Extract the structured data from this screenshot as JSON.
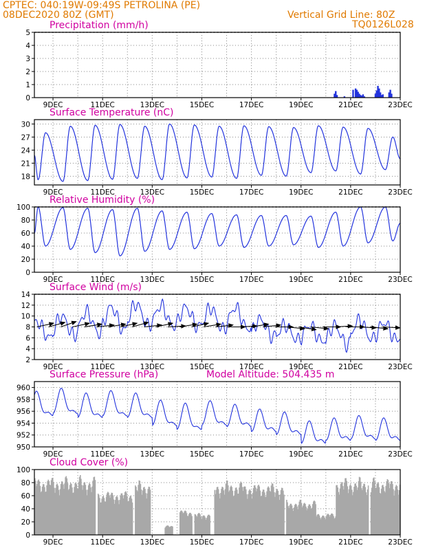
{
  "header": {
    "line1_left": "CPTEC:   040:19W-09:49S  PETROLINA (PE)",
    "line2_left": "08DEC2020 80Z (GMT)",
    "line1_right": "Vertical Grid Line: 80Z",
    "line2_right": "TQ0126L028"
  },
  "colors": {
    "header": "#e07a00",
    "title": "#d000a0",
    "line": "#2233dd",
    "cloud": "#a8a8a8",
    "arrows": "#000000"
  },
  "chart_data": [
    {
      "type": "bar",
      "title": "Precipitation (mm/h)",
      "ylim": [
        0,
        5
      ],
      "yticks": [
        0,
        1,
        2,
        3,
        4,
        5
      ],
      "xticks": [
        "9DEC",
        "11DEC",
        "13DEC",
        "15DEC",
        "17DEC",
        "19DEC",
        "21DEC",
        "23DEC"
      ],
      "xlim_days": [
        8.25,
        23.0
      ],
      "grid": true,
      "x_days": [
        20.35,
        20.4,
        20.45,
        20.75,
        21.1,
        21.2,
        21.25,
        21.3,
        21.35,
        21.4,
        21.45,
        21.5,
        21.55,
        22.0,
        22.05,
        22.1,
        22.15,
        22.2,
        22.25,
        22.3,
        22.55,
        22.6,
        22.65
      ],
      "values": [
        0.3,
        0.5,
        0.2,
        0.1,
        0.6,
        0.7,
        0.6,
        0.45,
        0.3,
        0.2,
        0.15,
        0.25,
        0.1,
        0.3,
        0.55,
        0.9,
        0.7,
        0.4,
        0.2,
        0.25,
        0.4,
        0.6,
        0.3
      ]
    },
    {
      "type": "line",
      "title": "Surface Temperature (nC)",
      "ylim": [
        16,
        31
      ],
      "yticks": [
        18,
        21,
        24,
        27,
        30
      ],
      "xticks": [
        "9DEC",
        "11DEC",
        "13DEC",
        "15DEC",
        "17DEC",
        "19DEC",
        "21DEC",
        "23DEC"
      ],
      "xlim_days": [
        8.25,
        23.0
      ],
      "grid": true,
      "series": [
        {
          "min_values": [
            17.2,
            16.8,
            17.0,
            17.3,
            17.5,
            17.2,
            17.6,
            17.8,
            17.5,
            18.2,
            18.0,
            18.8,
            19.2,
            18.5,
            19.5
          ],
          "max_values": [
            28.0,
            29.5,
            29.7,
            29.9,
            29.5,
            30.0,
            29.8,
            29.5,
            29.6,
            29.4,
            29.2,
            29.6,
            29.3,
            29.0,
            27.0
          ],
          "start": 22.8,
          "end": 22.0
        }
      ]
    },
    {
      "type": "line",
      "title": "Relative Humidity (%)",
      "ylim": [
        0,
        100
      ],
      "yticks": [
        0,
        20,
        40,
        60,
        80,
        100
      ],
      "xticks": [
        "9DEC",
        "11DEC",
        "13DEC",
        "15DEC",
        "17DEC",
        "19DEC",
        "21DEC",
        "23DEC"
      ],
      "xlim_days": [
        8.25,
        23.0
      ],
      "grid": true,
      "series": [
        {
          "max_values": [
            100,
            99,
            98,
            96,
            98,
            94,
            92,
            90,
            88,
            87,
            87,
            86,
            92,
            100,
            100
          ],
          "min_values": [
            40,
            35,
            30,
            25,
            32,
            35,
            36,
            40,
            38,
            40,
            42,
            38,
            40,
            45,
            48
          ],
          "start": 60,
          "end": 75
        }
      ]
    },
    {
      "type": "line",
      "title": "Surface Wind (m/s)",
      "ylim": [
        2,
        14
      ],
      "yticks": [
        2,
        4,
        6,
        8,
        10,
        12,
        14
      ],
      "xticks": [
        "9DEC",
        "11DEC",
        "13DEC",
        "15DEC",
        "17DEC",
        "19DEC",
        "21DEC",
        "23DEC"
      ],
      "xlim_days": [
        8.25,
        23.0
      ],
      "grid": true,
      "series": [
        {
          "day_means": [
            7.5,
            8.2,
            8.8,
            9.5,
            10.2,
            10.0,
            9.8,
            9.5,
            9.6,
            7.8,
            7.0,
            6.8,
            6.5,
            7.5,
            7.2
          ],
          "amplitudes": [
            1.5,
            1.8,
            2.0,
            2.2,
            2.0,
            1.9,
            1.8,
            2.0,
            2.0,
            1.6,
            1.4,
            1.5,
            1.8,
            1.8,
            1.6
          ]
        }
      ],
      "wind_arrows_deg": [
        250,
        245,
        240,
        250,
        255,
        260,
        255,
        250,
        245,
        260,
        250,
        265,
        255,
        250,
        255,
        260,
        270,
        265,
        255,
        260,
        270,
        280,
        285,
        280,
        270,
        265,
        270,
        275,
        280,
        275
      ]
    },
    {
      "type": "line",
      "title": "Surface Pressure (hPa)",
      "annotation": "Model Altitude: 504.435  m",
      "ylim": [
        950,
        961
      ],
      "yticks": [
        950,
        952,
        954,
        956,
        958,
        960
      ],
      "xticks": [
        "9DEC",
        "11DEC",
        "13DEC",
        "15DEC",
        "17DEC",
        "19DEC",
        "21DEC",
        "23DEC"
      ],
      "xlim_days": [
        8.25,
        23.0
      ],
      "grid": true,
      "series": [
        {
          "day_means": [
            956.8,
            957.2,
            956.5,
            956.8,
            956.5,
            955.2,
            954.6,
            955.2,
            954.8,
            954.0,
            953.5,
            952.0,
            952.5,
            952.8,
            952.5
          ],
          "amplitudes": [
            1.8,
            1.9,
            1.8,
            1.9,
            1.8,
            1.9,
            2.0,
            1.8,
            1.6,
            1.6,
            1.6,
            1.6,
            1.6,
            1.7,
            1.6
          ]
        }
      ]
    },
    {
      "type": "area",
      "title": "Cloud Cover (%)",
      "ylim": [
        0,
        100
      ],
      "yticks": [
        0,
        20,
        40,
        60,
        80,
        100
      ],
      "xticks": [
        "9DEC",
        "11DEC",
        "13DEC",
        "15DEC",
        "17DEC",
        "19DEC",
        "21DEC",
        "23DEC"
      ],
      "xlim_days": [
        8.25,
        23.0
      ],
      "grid": true,
      "series": [
        {
          "segments": [
            {
              "from": 8.25,
              "to": 10.7,
              "level": 92
            },
            {
              "from": 10.8,
              "to": 12.2,
              "level": 70
            },
            {
              "from": 12.3,
              "to": 12.9,
              "level": 85
            },
            {
              "from": 13.5,
              "to": 13.8,
              "level": 15
            },
            {
              "from": 14.1,
              "to": 14.6,
              "level": 40
            },
            {
              "from": 14.7,
              "to": 15.3,
              "level": 35
            },
            {
              "from": 15.5,
              "to": 16.7,
              "level": 85
            },
            {
              "from": 16.7,
              "to": 18.3,
              "level": 82
            },
            {
              "from": 18.4,
              "to": 19.6,
              "level": 55
            },
            {
              "from": 19.6,
              "to": 20.4,
              "level": 35
            },
            {
              "from": 20.4,
              "to": 21.7,
              "level": 90
            },
            {
              "from": 21.8,
              "to": 23.0,
              "level": 90
            }
          ]
        }
      ]
    }
  ]
}
